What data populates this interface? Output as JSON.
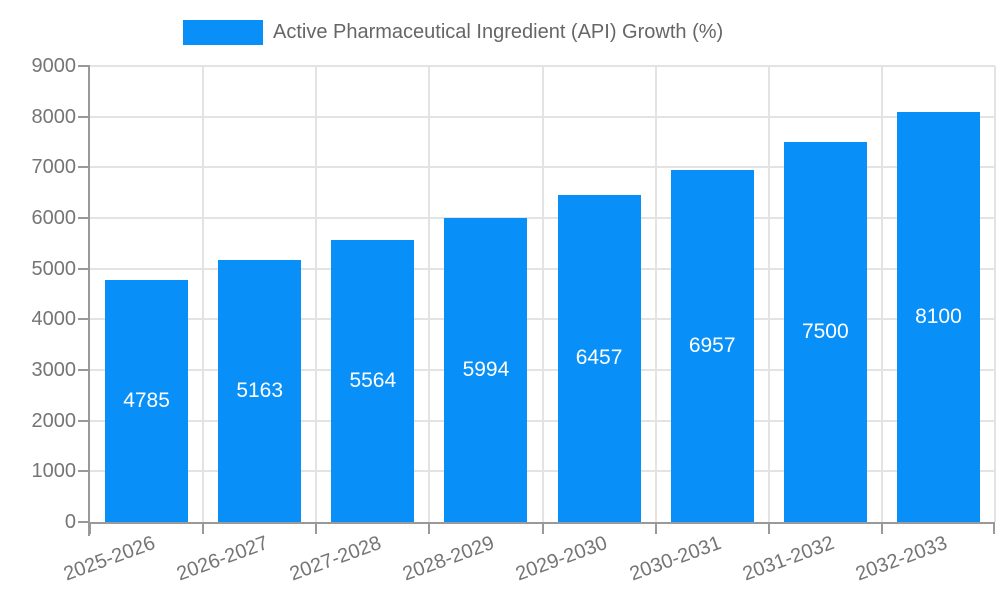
{
  "chart_data": {
    "type": "bar",
    "title": "",
    "legend": "Active Pharmaceutical Ingredient (API) Growth (%)",
    "legend_position": "top",
    "categories": [
      "2025-2026",
      "2026-2027",
      "2027-2028",
      "2028-2029",
      "2029-2030",
      "2030-2031",
      "2031-2032",
      "2032-2033"
    ],
    "series": [
      {
        "name": "Active Pharmaceutical Ingredient (API) Growth (%)",
        "values": [
          4785,
          5163,
          5564,
          5994,
          6457,
          6957,
          7500,
          8100
        ]
      }
    ],
    "bar_labels_shown": true,
    "xlabel": "",
    "ylabel": "",
    "ylim": [
      0,
      9000
    ],
    "ytick_step": 1000,
    "ytick_labels": [
      "0",
      "1000",
      "2000",
      "3000",
      "4000",
      "5000",
      "6000",
      "7000",
      "8000",
      "9000"
    ],
    "grid": true,
    "x_label_rotation_deg": -20
  },
  "colors": {
    "bar": "#0990F8",
    "axis_line": "#999999",
    "grid_line": "#E3E3E3",
    "tick_text": "#757575",
    "legend_text": "#666666",
    "value_text": "#FFFFFF",
    "background": "#FFFFFF"
  }
}
